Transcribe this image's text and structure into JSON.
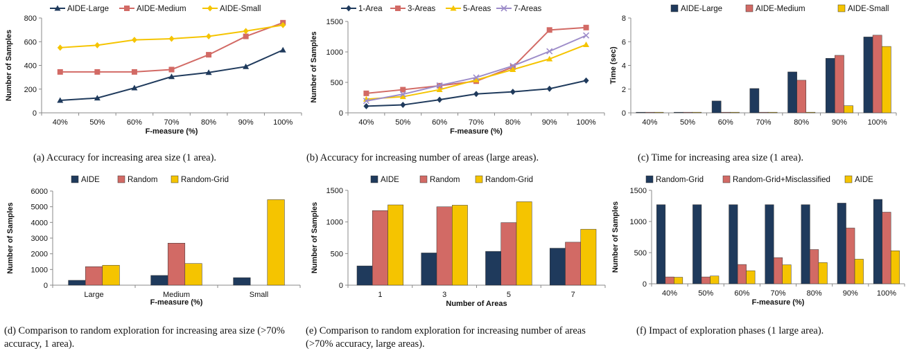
{
  "captions": [
    "(a)  Accuracy for increasing area size (1 area).",
    "(b)  Accuracy for increasing number of areas (large areas).",
    "(c)  Time for increasing area size (1 area).",
    "(d)  Comparison to random exploration for increasing area size (>70% accuracy, 1 area).",
    "(e)  Comparison to random exploration for increasing number of areas (>70% accuracy, large areas).",
    "(f)  Impact of exploration phases (1 large area)."
  ],
  "chart_data": [
    {
      "type": "line",
      "x": [
        "40%",
        "50%",
        "60%",
        "70%",
        "80%",
        "90%",
        "100%"
      ],
      "xlabel": "F-measure (%)",
      "ylabel": "Number of Samples",
      "ylim": [
        0,
        800
      ],
      "yticks": [
        "0",
        "200",
        "400",
        "600",
        "800"
      ],
      "legend": "top",
      "series": [
        {
          "name": "AIDE-Large",
          "color": "#1f3a5c",
          "marker": "triangle",
          "values": [
            105,
            125,
            210,
            305,
            340,
            390,
            530
          ]
        },
        {
          "name": "AIDE-Medium",
          "color": "#d26a65",
          "marker": "square",
          "values": [
            345,
            345,
            345,
            365,
            490,
            645,
            760
          ]
        },
        {
          "name": "AIDE-Small",
          "color": "#f5c400",
          "marker": "diamond",
          "values": [
            550,
            570,
            615,
            625,
            645,
            690,
            740
          ]
        }
      ]
    },
    {
      "type": "line",
      "x": [
        "40%",
        "50%",
        "60%",
        "70%",
        "80%",
        "90%",
        "100%"
      ],
      "xlabel": "F-measure (%)",
      "ylabel": "Number of Samples",
      "ylim": [
        0,
        1500
      ],
      "yticks": [
        "0",
        "500",
        "1000",
        "1500"
      ],
      "legend": "top",
      "series": [
        {
          "name": "1-Area",
          "color": "#1f3a5c",
          "marker": "diamond",
          "values": [
            110,
            130,
            215,
            310,
            345,
            395,
            530
          ]
        },
        {
          "name": "3-Areas",
          "color": "#d26a65",
          "marker": "square",
          "values": [
            320,
            380,
            445,
            520,
            750,
            1360,
            1400
          ]
        },
        {
          "name": "5-Areas",
          "color": "#f5c400",
          "marker": "triangle",
          "values": [
            225,
            265,
            380,
            540,
            710,
            885,
            1120
          ]
        },
        {
          "name": "7-Areas",
          "color": "#9d8cc9",
          "marker": "x",
          "values": [
            195,
            305,
            450,
            580,
            770,
            1010,
            1270
          ]
        }
      ]
    },
    {
      "type": "bar",
      "categories": [
        "40%",
        "50%",
        "60%",
        "70%",
        "80%",
        "90%",
        "100%"
      ],
      "xlabel": "",
      "ylabel": "Time (sec)",
      "ylim": [
        0,
        8
      ],
      "yticks": [
        "0",
        "2",
        "4",
        "6",
        "8"
      ],
      "legend": "top",
      "series": [
        {
          "name": "AIDE-Large",
          "color": "#1f3a5c",
          "values": [
            0.05,
            0.05,
            1.0,
            2.05,
            3.45,
            4.6,
            6.4
          ]
        },
        {
          "name": "AIDE-Medium",
          "color": "#d26a65",
          "values": [
            0.05,
            0.05,
            0.05,
            0.05,
            2.75,
            4.85,
            6.55
          ]
        },
        {
          "name": "AIDE-Small",
          "color": "#f5c400",
          "values": [
            0.05,
            0.05,
            0.05,
            0.05,
            0.05,
            0.6,
            5.6
          ]
        }
      ]
    },
    {
      "type": "bar",
      "categories": [
        "Large",
        "Medium",
        "Small"
      ],
      "xlabel": "F-measure (%)",
      "ylabel": "Number of Samples",
      "ylim": [
        0,
        6000
      ],
      "yticks": [
        "0",
        "1000",
        "2000",
        "3000",
        "4000",
        "5000",
        "6000"
      ],
      "legend": "top",
      "series": [
        {
          "name": "AIDE",
          "color": "#1f3a5c",
          "values": [
            310,
            620,
            480
          ]
        },
        {
          "name": "Random",
          "color": "#d26a65",
          "values": [
            1180,
            2680,
            0
          ]
        },
        {
          "name": "Random-Grid",
          "color": "#f5c400",
          "values": [
            1270,
            1380,
            5450
          ]
        }
      ]
    },
    {
      "type": "bar",
      "categories": [
        "1",
        "3",
        "5",
        "7"
      ],
      "xlabel": "Number of Areas",
      "ylabel": "Number of Samples",
      "ylim": [
        0,
        1500
      ],
      "yticks": [
        "0",
        "500",
        "1000",
        "1500"
      ],
      "legend": "top",
      "series": [
        {
          "name": "AIDE",
          "color": "#1f3a5c",
          "values": [
            305,
            510,
            535,
            585
          ]
        },
        {
          "name": "Random",
          "color": "#d26a65",
          "values": [
            1180,
            1240,
            990,
            680
          ]
        },
        {
          "name": "Random-Grid",
          "color": "#f5c400",
          "values": [
            1270,
            1265,
            1320,
            885
          ]
        }
      ]
    },
    {
      "type": "bar",
      "categories": [
        "40%",
        "50%",
        "60%",
        "70%",
        "80%",
        "90%",
        "100%"
      ],
      "xlabel": "F-measure (%)",
      "ylabel": "Number of Samples",
      "ylim": [
        0,
        1500
      ],
      "yticks": [
        "0",
        "500",
        "1000",
        "1500"
      ],
      "legend": "top",
      "series": [
        {
          "name": "Random-Grid",
          "color": "#1f3a5c",
          "values": [
            1270,
            1270,
            1270,
            1270,
            1270,
            1295,
            1355
          ]
        },
        {
          "name": "Random-Grid+Misclassified",
          "color": "#d26a65",
          "values": [
            110,
            110,
            310,
            420,
            550,
            895,
            1150
          ]
        },
        {
          "name": "AIDE",
          "color": "#f5c400",
          "values": [
            105,
            125,
            210,
            305,
            340,
            395,
            530
          ]
        }
      ]
    }
  ]
}
